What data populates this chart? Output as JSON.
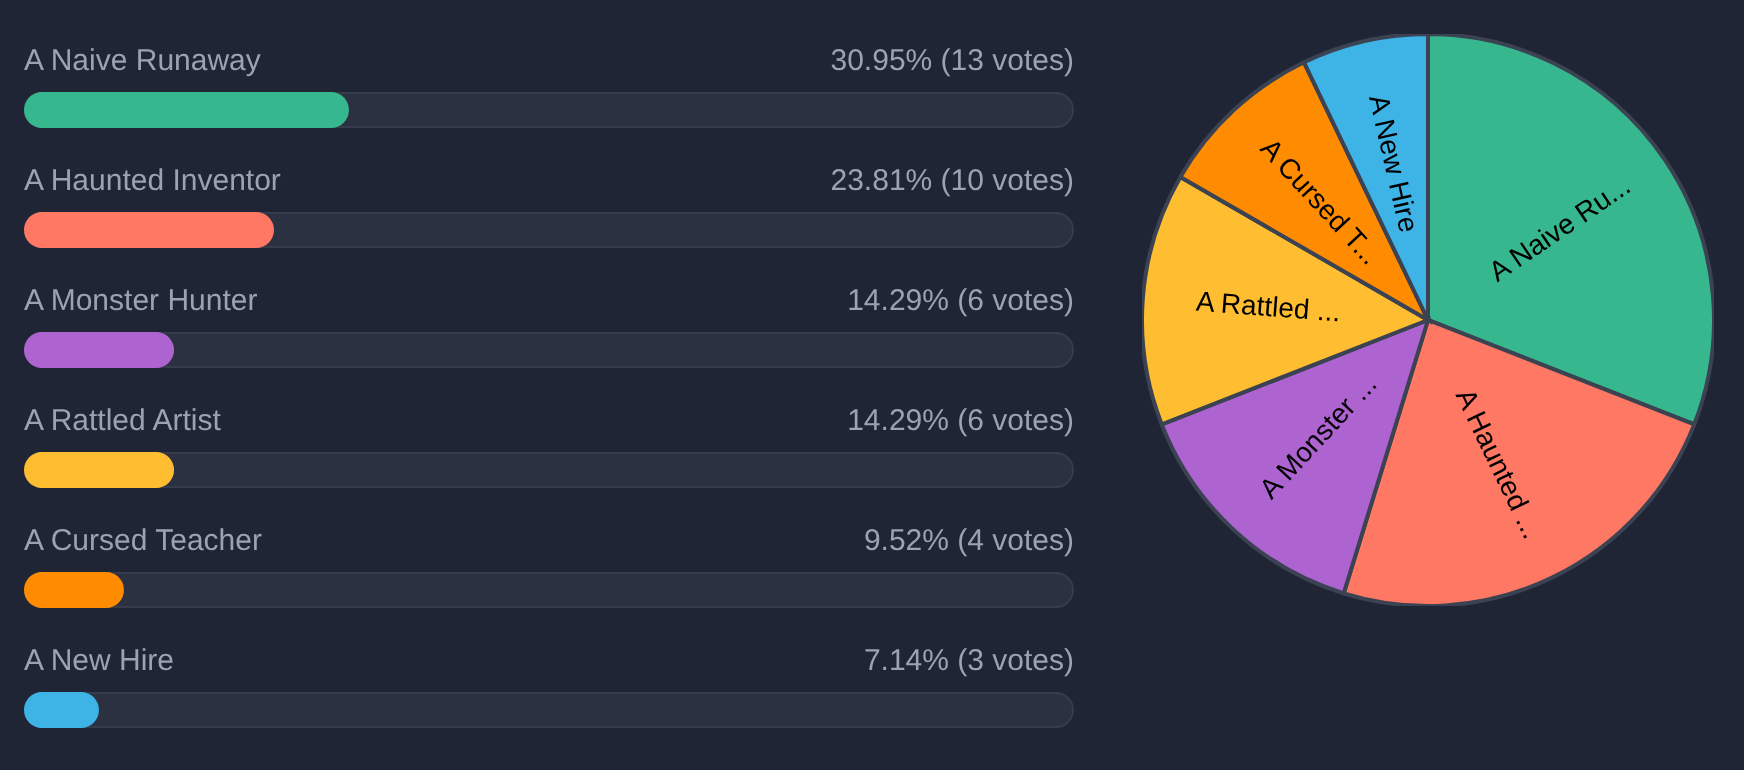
{
  "chart_data": [
    {
      "type": "bar",
      "orientation": "horizontal",
      "categories": [
        "A Naive Runaway",
        "A Haunted Inventor",
        "A Monster Hunter",
        "A Rattled Artist",
        "A Cursed Teacher",
        "A New Hire"
      ],
      "values": [
        30.95,
        23.81,
        14.29,
        14.29,
        9.52,
        7.14
      ],
      "colors": [
        "#36b78d",
        "#ff7864",
        "#ad63d0",
        "#ffbe32",
        "#ff8c00",
        "#3db3e6"
      ],
      "value_labels": [
        "30.95% (13 votes)",
        "23.81% (10 votes)",
        "14.29% (6 votes)",
        "14.29% (6 votes)",
        "9.52% (4 votes)",
        "7.14% (3 votes)"
      ],
      "xlim": [
        0,
        100
      ],
      "tick_labels": false
    },
    {
      "type": "pie",
      "categories": [
        "A Naive Ru...",
        "A Haunted ...",
        "A Monster ...",
        "A Rattled ...",
        "A Cursed T...",
        "A New Hire"
      ],
      "values": [
        30.95,
        23.81,
        14.29,
        14.29,
        9.52,
        7.14
      ],
      "colors": [
        "#36b78d",
        "#ff7864",
        "#ad63d0",
        "#ffbe32",
        "#ff8c00",
        "#3db3e6"
      ]
    }
  ]
}
